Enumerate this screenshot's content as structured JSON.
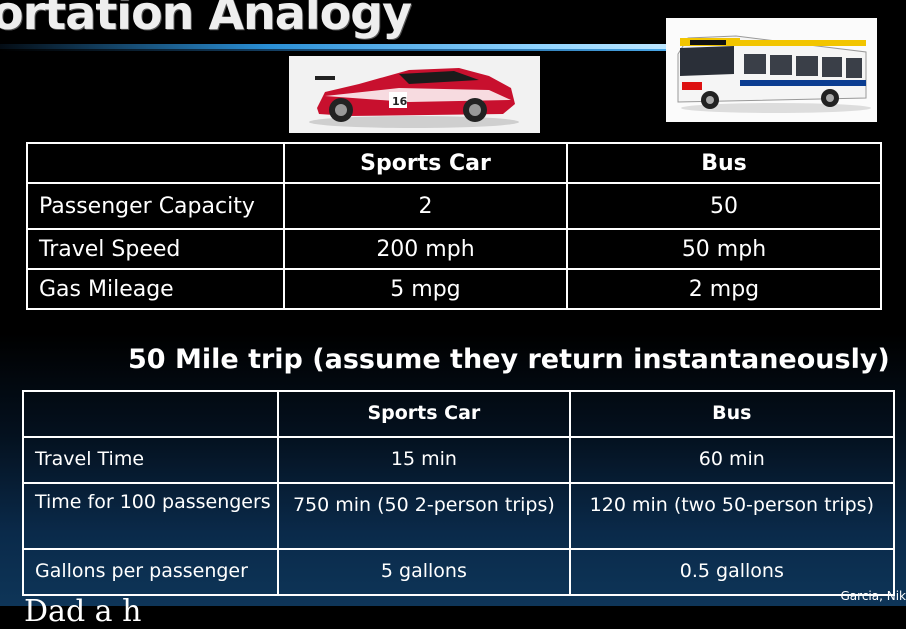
{
  "slide": {
    "title": "ortation Analogy",
    "subtitle": "50 Mile trip (assume they return instantaneously)",
    "credit": "Garcia, Nik",
    "cut_text": "Dad a h"
  },
  "images": {
    "car": "sports-car-image",
    "bus": "bus-image"
  },
  "table1": {
    "headers": [
      "",
      "Sports Car",
      "Bus"
    ],
    "rows": [
      [
        "Passenger Capacity",
        "2",
        "50"
      ],
      [
        "Travel Speed",
        "200 mph",
        "50 mph"
      ],
      [
        "Gas Mileage",
        "5 mpg",
        "2 mpg"
      ]
    ]
  },
  "table2": {
    "headers": [
      "",
      "Sports Car",
      "Bus"
    ],
    "rows": [
      [
        "Travel Time",
        "15 min",
        "60 min"
      ],
      [
        "Time for 100 passengers",
        "750 min (50 2-person trips)",
        "120 min (two 50-person trips)"
      ],
      [
        "Gallons per passenger",
        "5 gallons",
        "0.5 gallons"
      ]
    ]
  }
}
